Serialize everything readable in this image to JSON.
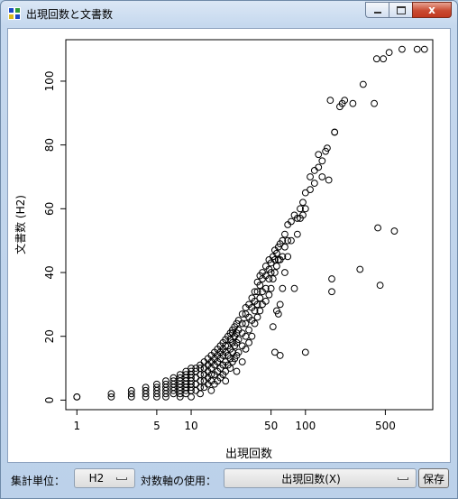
{
  "window": {
    "title": "出現回数と文書数",
    "close_label": "x"
  },
  "toolbar": {
    "unit_label": "集計単位：",
    "unit_value": "H2",
    "log_label": "対数軸の使用：",
    "log_value": "出現回数(X)",
    "save_label": "保存"
  },
  "chart_data": {
    "type": "scatter",
    "xlabel": "出現回数",
    "ylabel": "文書数 (H2)",
    "x_scale": "log",
    "xlim": [
      0.8,
      1300
    ],
    "ylim": [
      -3,
      113
    ],
    "x_ticks": [
      1,
      5,
      10,
      50,
      100,
      500
    ],
    "y_ticks": [
      0,
      20,
      40,
      60,
      80,
      100
    ],
    "grid": false,
    "points": [
      [
        1,
        1
      ],
      [
        1,
        1
      ],
      [
        2,
        1
      ],
      [
        2,
        2
      ],
      [
        3,
        1
      ],
      [
        3,
        2
      ],
      [
        3,
        3
      ],
      [
        4,
        1
      ],
      [
        4,
        2
      ],
      [
        4,
        3
      ],
      [
        4,
        4
      ],
      [
        5,
        1
      ],
      [
        5,
        2
      ],
      [
        5,
        3
      ],
      [
        5,
        4
      ],
      [
        5,
        5
      ],
      [
        6,
        1
      ],
      [
        6,
        2
      ],
      [
        6,
        3
      ],
      [
        6,
        4
      ],
      [
        6,
        5
      ],
      [
        6,
        6
      ],
      [
        7,
        2
      ],
      [
        7,
        3
      ],
      [
        7,
        4
      ],
      [
        7,
        5
      ],
      [
        7,
        6
      ],
      [
        7,
        7
      ],
      [
        8,
        1
      ],
      [
        8,
        2
      ],
      [
        8,
        3
      ],
      [
        8,
        4
      ],
      [
        8,
        5
      ],
      [
        8,
        6
      ],
      [
        8,
        7
      ],
      [
        8,
        8
      ],
      [
        9,
        2
      ],
      [
        9,
        3
      ],
      [
        9,
        4
      ],
      [
        9,
        5
      ],
      [
        9,
        6
      ],
      [
        9,
        7
      ],
      [
        9,
        8
      ],
      [
        9,
        9
      ],
      [
        10,
        1
      ],
      [
        10,
        3
      ],
      [
        10,
        4
      ],
      [
        10,
        5
      ],
      [
        10,
        6
      ],
      [
        10,
        7
      ],
      [
        10,
        8
      ],
      [
        10,
        9
      ],
      [
        10,
        10
      ],
      [
        11,
        3
      ],
      [
        11,
        5
      ],
      [
        11,
        7
      ],
      [
        11,
        9
      ],
      [
        11,
        10
      ],
      [
        12,
        2
      ],
      [
        12,
        4
      ],
      [
        12,
        6
      ],
      [
        12,
        8
      ],
      [
        12,
        10
      ],
      [
        12,
        11
      ],
      [
        13,
        4
      ],
      [
        13,
        6
      ],
      [
        13,
        8
      ],
      [
        13,
        10
      ],
      [
        13,
        12
      ],
      [
        14,
        5
      ],
      [
        14,
        7
      ],
      [
        14,
        9
      ],
      [
        14,
        11
      ],
      [
        14,
        13
      ],
      [
        15,
        3
      ],
      [
        15,
        6
      ],
      [
        15,
        8
      ],
      [
        15,
        10
      ],
      [
        15,
        12
      ],
      [
        15,
        14
      ],
      [
        16,
        5
      ],
      [
        16,
        8
      ],
      [
        16,
        11
      ],
      [
        16,
        13
      ],
      [
        16,
        15
      ],
      [
        17,
        6
      ],
      [
        17,
        9
      ],
      [
        17,
        12
      ],
      [
        17,
        14
      ],
      [
        17,
        16
      ],
      [
        18,
        7
      ],
      [
        18,
        10
      ],
      [
        18,
        13
      ],
      [
        18,
        15
      ],
      [
        18,
        17
      ],
      [
        19,
        8
      ],
      [
        19,
        11
      ],
      [
        19,
        14
      ],
      [
        19,
        16
      ],
      [
        19,
        18
      ],
      [
        20,
        6
      ],
      [
        20,
        9
      ],
      [
        20,
        12
      ],
      [
        20,
        15
      ],
      [
        20,
        17
      ],
      [
        20,
        19
      ],
      [
        21,
        11
      ],
      [
        21,
        14
      ],
      [
        21,
        17
      ],
      [
        21,
        20
      ],
      [
        22,
        10
      ],
      [
        22,
        13
      ],
      [
        22,
        16
      ],
      [
        22,
        19
      ],
      [
        22,
        21
      ],
      [
        23,
        12
      ],
      [
        23,
        15
      ],
      [
        23,
        18
      ],
      [
        23,
        21
      ],
      [
        23,
        22
      ],
      [
        24,
        13
      ],
      [
        24,
        17
      ],
      [
        24,
        20
      ],
      [
        24,
        23
      ],
      [
        25,
        9
      ],
      [
        25,
        14
      ],
      [
        25,
        18
      ],
      [
        25,
        21
      ],
      [
        25,
        24
      ],
      [
        26,
        15
      ],
      [
        26,
        19
      ],
      [
        26,
        22
      ],
      [
        26,
        25
      ],
      [
        28,
        12
      ],
      [
        28,
        17
      ],
      [
        28,
        21
      ],
      [
        28,
        24
      ],
      [
        28,
        27
      ],
      [
        30,
        16
      ],
      [
        30,
        20
      ],
      [
        30,
        24
      ],
      [
        30,
        27
      ],
      [
        30,
        29
      ],
      [
        32,
        18
      ],
      [
        32,
        22
      ],
      [
        32,
        26
      ],
      [
        32,
        30
      ],
      [
        34,
        20
      ],
      [
        34,
        25
      ],
      [
        34,
        29
      ],
      [
        34,
        32
      ],
      [
        36,
        24
      ],
      [
        36,
        28
      ],
      [
        36,
        31
      ],
      [
        36,
        34
      ],
      [
        38,
        26
      ],
      [
        38,
        30
      ],
      [
        38,
        34
      ],
      [
        38,
        37
      ],
      [
        40,
        28
      ],
      [
        40,
        32
      ],
      [
        40,
        36
      ],
      [
        40,
        39
      ],
      [
        42,
        30
      ],
      [
        42,
        34
      ],
      [
        42,
        38
      ],
      [
        42,
        40
      ],
      [
        45,
        31
      ],
      [
        45,
        35
      ],
      [
        45,
        39
      ],
      [
        45,
        42
      ],
      [
        48,
        33
      ],
      [
        48,
        38
      ],
      [
        48,
        41
      ],
      [
        48,
        44
      ],
      [
        50,
        35
      ],
      [
        50,
        40
      ],
      [
        50,
        43
      ],
      [
        52,
        23
      ],
      [
        52,
        38
      ],
      [
        52,
        45
      ],
      [
        54,
        15
      ],
      [
        54,
        40
      ],
      [
        54,
        44
      ],
      [
        54,
        47
      ],
      [
        56,
        28
      ],
      [
        56,
        42
      ],
      [
        56,
        46
      ],
      [
        58,
        27
      ],
      [
        58,
        44
      ],
      [
        58,
        48
      ],
      [
        60,
        14
      ],
      [
        60,
        30
      ],
      [
        60,
        44
      ],
      [
        60,
        49
      ],
      [
        63,
        35
      ],
      [
        63,
        45
      ],
      [
        63,
        50
      ],
      [
        66,
        40
      ],
      [
        66,
        48
      ],
      [
        66,
        52
      ],
      [
        70,
        45
      ],
      [
        70,
        50
      ],
      [
        70,
        55
      ],
      [
        75,
        50
      ],
      [
        75,
        56
      ],
      [
        80,
        35
      ],
      [
        80,
        58
      ],
      [
        85,
        52
      ],
      [
        85,
        57
      ],
      [
        90,
        57
      ],
      [
        90,
        60
      ],
      [
        95,
        58
      ],
      [
        95,
        62
      ],
      [
        100,
        15
      ],
      [
        100,
        60
      ],
      [
        100,
        65
      ],
      [
        110,
        66
      ],
      [
        110,
        70
      ],
      [
        120,
        68
      ],
      [
        120,
        72
      ],
      [
        130,
        73
      ],
      [
        130,
        77
      ],
      [
        140,
        70
      ],
      [
        140,
        75
      ],
      [
        150,
        78
      ],
      [
        155,
        79
      ],
      [
        160,
        69
      ],
      [
        165,
        94
      ],
      [
        170,
        38
      ],
      [
        170,
        34
      ],
      [
        180,
        84
      ],
      [
        180,
        84
      ],
      [
        200,
        92
      ],
      [
        210,
        93
      ],
      [
        220,
        94
      ],
      [
        260,
        93
      ],
      [
        300,
        41
      ],
      [
        320,
        99
      ],
      [
        400,
        93
      ],
      [
        420,
        107
      ],
      [
        430,
        54
      ],
      [
        450,
        36
      ],
      [
        480,
        107
      ],
      [
        540,
        109
      ],
      [
        600,
        53
      ],
      [
        700,
        110
      ],
      [
        950,
        110
      ],
      [
        1100,
        110
      ]
    ]
  }
}
